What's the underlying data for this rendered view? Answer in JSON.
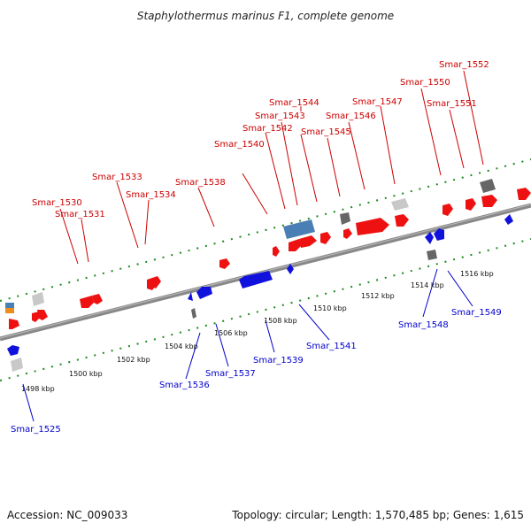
{
  "title": "Staphylothermus marinus F1, complete genome",
  "footer": {
    "accession": "Accession: NC_009033",
    "summary": "Topology: circular; Length: 1,570,485 bp; Genes: 1,615"
  },
  "colors": {
    "forward_gene": "#ee1111",
    "reverse_gene": "#1111dd",
    "rna_gene": "#4a7fb5",
    "pseudo_gene": "#666666",
    "other_gene": "#c8c8c8",
    "backbone": "#888888",
    "ticks": "#1c8a1c",
    "label_forward": "#cc0000",
    "label_reverse": "#0000cc"
  },
  "kbp_labels": [
    "1498 kbp",
    "1500 kbp",
    "1502 kbp",
    "1504 kbp",
    "1506 kbp",
    "1508 kbp",
    "1510 kbp",
    "1512 kbp",
    "1514 kbp",
    "1516 kbp"
  ],
  "gene_labels_forward": [
    "Smar_1530",
    "Smar_1531",
    "Smar_1533",
    "Smar_1534",
    "Smar_1538",
    "Smar_1540",
    "Smar_1542",
    "Smar_1543",
    "Smar_1544",
    "Smar_1545",
    "Smar_1546",
    "Smar_1547",
    "Smar_1550",
    "Smar_1551",
    "Smar_1552"
  ],
  "gene_labels_reverse": [
    "Smar_1525",
    "Smar_1536",
    "Smar_1537",
    "Smar_1539",
    "Smar_1541",
    "Smar_1548",
    "Smar_1549"
  ]
}
